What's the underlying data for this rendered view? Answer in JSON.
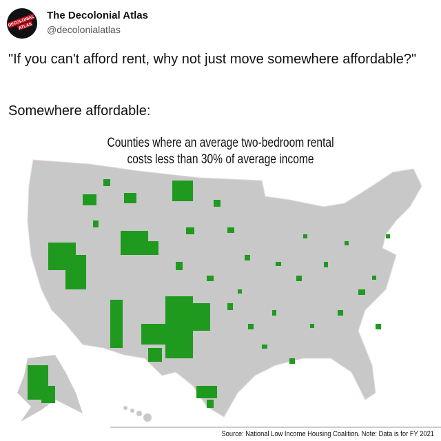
{
  "header": {
    "name": "The Decolonial Atlas",
    "handle": "@decolonialatlas",
    "avatar_lines": [
      "DECOLONIAL",
      "ATLAS"
    ]
  },
  "tweet": {
    "text": "\"If you can't afford rent, why not just move somewhere affordable?\"",
    "caption": "Somewhere affordable:"
  },
  "map": {
    "title_lines": [
      "Counties where an average two-bedroom rental",
      "costs less than 30% of average income"
    ],
    "source": "Source: National Low Income Housing Coalition. Note: Data is for FY 2021"
  }
}
